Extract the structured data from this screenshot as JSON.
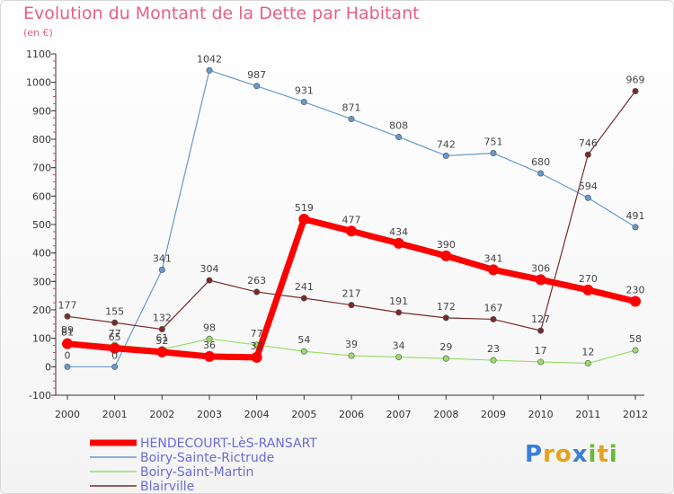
{
  "chart_data": {
    "type": "line",
    "title": "Evolution du Montant de la Dette par Habitant",
    "subtitle": "(en €)",
    "xlabel": "",
    "ylabel": "",
    "categories": [
      "2000",
      "2001",
      "2002",
      "2003",
      "2004",
      "2005",
      "2006",
      "2007",
      "2008",
      "2009",
      "2010",
      "2011",
      "2012"
    ],
    "ylim": [
      -100,
      1100
    ],
    "yticks": [
      -100,
      0,
      100,
      200,
      300,
      400,
      500,
      600,
      700,
      800,
      900,
      1000,
      1100
    ],
    "grid": false,
    "legend_position": "bottom-left",
    "series": [
      {
        "name": "HENDECOURT-LèS-RANSART",
        "color": "#ff0000",
        "values": [
          81,
          65,
          52,
          36,
          33,
          519,
          477,
          434,
          390,
          341,
          306,
          270,
          230
        ]
      },
      {
        "name": "Boiry-Sainte-Rictrude",
        "color": "#6699cc",
        "values": [
          0,
          0,
          341,
          1042,
          987,
          931,
          871,
          808,
          742,
          751,
          680,
          594,
          491
        ]
      },
      {
        "name": "Boiry-Saint-Martin",
        "color": "#99dd66",
        "values": [
          89,
          77,
          61,
          98,
          77,
          54,
          39,
          34,
          29,
          23,
          17,
          12,
          58
        ]
      },
      {
        "name": "Blairville",
        "color": "#7a2a2a",
        "values": [
          177,
          155,
          132,
          304,
          263,
          241,
          217,
          191,
          172,
          167,
          127,
          746,
          969
        ]
      }
    ]
  },
  "brand": {
    "letters": [
      "P",
      "r",
      "o",
      "x",
      "i",
      "t",
      "i"
    ],
    "colors": [
      "#3a7fd5",
      "#e8a020",
      "#e8a020",
      "#3a7fd5",
      "#66bb33",
      "#e8a020",
      "#66bb33"
    ]
  }
}
